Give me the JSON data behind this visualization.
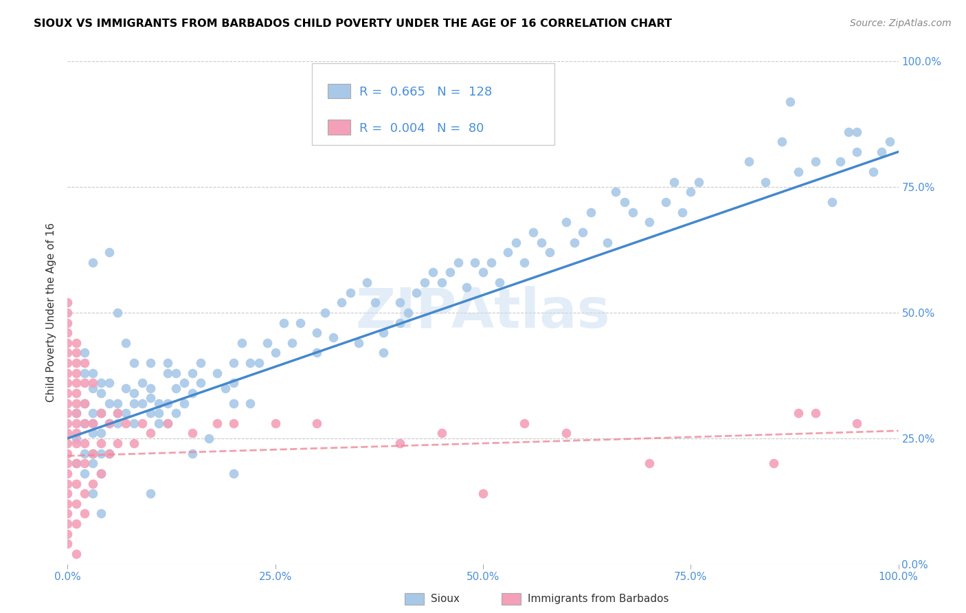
{
  "title": "SIOUX VS IMMIGRANTS FROM BARBADOS CHILD POVERTY UNDER THE AGE OF 16 CORRELATION CHART",
  "source": "Source: ZipAtlas.com",
  "ylabel": "Child Poverty Under the Age of 16",
  "xmin": 0.0,
  "xmax": 1.0,
  "ymin": 0.0,
  "ymax": 1.0,
  "sioux_R": 0.665,
  "sioux_N": 128,
  "barbados_R": 0.004,
  "barbados_N": 80,
  "sioux_color": "#a8c8e8",
  "barbados_color": "#f4a0b8",
  "sioux_line_color": "#4488cc",
  "barbados_line_color": "#ee8899",
  "watermark": "ZIPAtlas",
  "tick_label_color": "#4a90d9",
  "grid_color": "#bbbbbb",
  "xtick_labels": [
    "0.0%",
    "25.0%",
    "50.0%",
    "75.0%",
    "100.0%"
  ],
  "ytick_labels_right": [
    "0.0%",
    "25.0%",
    "50.0%",
    "75.0%",
    "100.0%"
  ],
  "sioux_points": [
    [
      0.01,
      0.2
    ],
    [
      0.01,
      0.25
    ],
    [
      0.01,
      0.3
    ],
    [
      0.02,
      0.18
    ],
    [
      0.02,
      0.22
    ],
    [
      0.02,
      0.28
    ],
    [
      0.02,
      0.32
    ],
    [
      0.02,
      0.38
    ],
    [
      0.02,
      0.42
    ],
    [
      0.03,
      0.14
    ],
    [
      0.03,
      0.2
    ],
    [
      0.03,
      0.22
    ],
    [
      0.03,
      0.26
    ],
    [
      0.03,
      0.28
    ],
    [
      0.03,
      0.3
    ],
    [
      0.03,
      0.35
    ],
    [
      0.03,
      0.38
    ],
    [
      0.03,
      0.6
    ],
    [
      0.04,
      0.1
    ],
    [
      0.04,
      0.18
    ],
    [
      0.04,
      0.22
    ],
    [
      0.04,
      0.26
    ],
    [
      0.04,
      0.3
    ],
    [
      0.04,
      0.34
    ],
    [
      0.04,
      0.36
    ],
    [
      0.05,
      0.22
    ],
    [
      0.05,
      0.28
    ],
    [
      0.05,
      0.32
    ],
    [
      0.05,
      0.36
    ],
    [
      0.05,
      0.62
    ],
    [
      0.06,
      0.28
    ],
    [
      0.06,
      0.3
    ],
    [
      0.06,
      0.32
    ],
    [
      0.06,
      0.5
    ],
    [
      0.07,
      0.3
    ],
    [
      0.07,
      0.35
    ],
    [
      0.07,
      0.44
    ],
    [
      0.08,
      0.28
    ],
    [
      0.08,
      0.32
    ],
    [
      0.08,
      0.34
    ],
    [
      0.08,
      0.4
    ],
    [
      0.09,
      0.32
    ],
    [
      0.09,
      0.36
    ],
    [
      0.1,
      0.14
    ],
    [
      0.1,
      0.3
    ],
    [
      0.1,
      0.33
    ],
    [
      0.1,
      0.35
    ],
    [
      0.1,
      0.4
    ],
    [
      0.11,
      0.28
    ],
    [
      0.11,
      0.3
    ],
    [
      0.11,
      0.32
    ],
    [
      0.12,
      0.28
    ],
    [
      0.12,
      0.32
    ],
    [
      0.12,
      0.38
    ],
    [
      0.12,
      0.4
    ],
    [
      0.13,
      0.3
    ],
    [
      0.13,
      0.35
    ],
    [
      0.13,
      0.38
    ],
    [
      0.14,
      0.32
    ],
    [
      0.14,
      0.36
    ],
    [
      0.15,
      0.22
    ],
    [
      0.15,
      0.34
    ],
    [
      0.15,
      0.38
    ],
    [
      0.16,
      0.36
    ],
    [
      0.16,
      0.4
    ],
    [
      0.17,
      0.25
    ],
    [
      0.18,
      0.38
    ],
    [
      0.19,
      0.35
    ],
    [
      0.2,
      0.18
    ],
    [
      0.2,
      0.32
    ],
    [
      0.2,
      0.36
    ],
    [
      0.2,
      0.4
    ],
    [
      0.21,
      0.44
    ],
    [
      0.22,
      0.32
    ],
    [
      0.22,
      0.4
    ],
    [
      0.23,
      0.4
    ],
    [
      0.24,
      0.44
    ],
    [
      0.25,
      0.42
    ],
    [
      0.26,
      0.48
    ],
    [
      0.27,
      0.44
    ],
    [
      0.28,
      0.48
    ],
    [
      0.3,
      0.42
    ],
    [
      0.3,
      0.46
    ],
    [
      0.31,
      0.5
    ],
    [
      0.32,
      0.45
    ],
    [
      0.33,
      0.52
    ],
    [
      0.34,
      0.54
    ],
    [
      0.35,
      0.44
    ],
    [
      0.36,
      0.56
    ],
    [
      0.37,
      0.52
    ],
    [
      0.38,
      0.42
    ],
    [
      0.38,
      0.46
    ],
    [
      0.4,
      0.48
    ],
    [
      0.4,
      0.52
    ],
    [
      0.41,
      0.5
    ],
    [
      0.42,
      0.54
    ],
    [
      0.43,
      0.56
    ],
    [
      0.44,
      0.58
    ],
    [
      0.45,
      0.56
    ],
    [
      0.46,
      0.58
    ],
    [
      0.47,
      0.6
    ],
    [
      0.48,
      0.55
    ],
    [
      0.49,
      0.6
    ],
    [
      0.5,
      0.58
    ],
    [
      0.51,
      0.6
    ],
    [
      0.52,
      0.56
    ],
    [
      0.53,
      0.62
    ],
    [
      0.54,
      0.64
    ],
    [
      0.55,
      0.6
    ],
    [
      0.56,
      0.66
    ],
    [
      0.57,
      0.64
    ],
    [
      0.58,
      0.62
    ],
    [
      0.6,
      0.68
    ],
    [
      0.61,
      0.64
    ],
    [
      0.62,
      0.66
    ],
    [
      0.63,
      0.7
    ],
    [
      0.65,
      0.64
    ],
    [
      0.66,
      0.74
    ],
    [
      0.67,
      0.72
    ],
    [
      0.68,
      0.7
    ],
    [
      0.7,
      0.68
    ],
    [
      0.72,
      0.72
    ],
    [
      0.73,
      0.76
    ],
    [
      0.74,
      0.7
    ],
    [
      0.75,
      0.74
    ],
    [
      0.76,
      0.76
    ],
    [
      0.82,
      0.8
    ],
    [
      0.84,
      0.76
    ],
    [
      0.86,
      0.84
    ],
    [
      0.87,
      0.92
    ],
    [
      0.88,
      0.78
    ],
    [
      0.9,
      0.8
    ],
    [
      0.92,
      0.72
    ],
    [
      0.93,
      0.8
    ],
    [
      0.94,
      0.86
    ],
    [
      0.95,
      0.82
    ],
    [
      0.95,
      0.86
    ],
    [
      0.97,
      0.78
    ],
    [
      0.98,
      0.82
    ],
    [
      0.99,
      0.84
    ]
  ],
  "barbados_points": [
    [
      0.0,
      0.04
    ],
    [
      0.0,
      0.06
    ],
    [
      0.0,
      0.08
    ],
    [
      0.0,
      0.1
    ],
    [
      0.0,
      0.12
    ],
    [
      0.0,
      0.14
    ],
    [
      0.0,
      0.16
    ],
    [
      0.0,
      0.18
    ],
    [
      0.0,
      0.2
    ],
    [
      0.0,
      0.22
    ],
    [
      0.0,
      0.24
    ],
    [
      0.0,
      0.26
    ],
    [
      0.0,
      0.28
    ],
    [
      0.0,
      0.3
    ],
    [
      0.0,
      0.32
    ],
    [
      0.0,
      0.34
    ],
    [
      0.0,
      0.36
    ],
    [
      0.0,
      0.38
    ],
    [
      0.0,
      0.4
    ],
    [
      0.0,
      0.42
    ],
    [
      0.0,
      0.44
    ],
    [
      0.0,
      0.46
    ],
    [
      0.0,
      0.48
    ],
    [
      0.0,
      0.5
    ],
    [
      0.0,
      0.52
    ],
    [
      0.01,
      0.08
    ],
    [
      0.01,
      0.12
    ],
    [
      0.01,
      0.16
    ],
    [
      0.01,
      0.2
    ],
    [
      0.01,
      0.24
    ],
    [
      0.01,
      0.26
    ],
    [
      0.01,
      0.28
    ],
    [
      0.01,
      0.3
    ],
    [
      0.01,
      0.32
    ],
    [
      0.01,
      0.34
    ],
    [
      0.01,
      0.36
    ],
    [
      0.01,
      0.38
    ],
    [
      0.01,
      0.4
    ],
    [
      0.01,
      0.42
    ],
    [
      0.01,
      0.44
    ],
    [
      0.01,
      0.02
    ],
    [
      0.02,
      0.1
    ],
    [
      0.02,
      0.14
    ],
    [
      0.02,
      0.2
    ],
    [
      0.02,
      0.24
    ],
    [
      0.02,
      0.28
    ],
    [
      0.02,
      0.32
    ],
    [
      0.02,
      0.36
    ],
    [
      0.02,
      0.4
    ],
    [
      0.03,
      0.16
    ],
    [
      0.03,
      0.22
    ],
    [
      0.03,
      0.28
    ],
    [
      0.03,
      0.36
    ],
    [
      0.04,
      0.18
    ],
    [
      0.04,
      0.24
    ],
    [
      0.04,
      0.3
    ],
    [
      0.05,
      0.22
    ],
    [
      0.05,
      0.28
    ],
    [
      0.06,
      0.24
    ],
    [
      0.06,
      0.3
    ],
    [
      0.07,
      0.28
    ],
    [
      0.08,
      0.24
    ],
    [
      0.09,
      0.28
    ],
    [
      0.1,
      0.26
    ],
    [
      0.12,
      0.28
    ],
    [
      0.15,
      0.26
    ],
    [
      0.18,
      0.28
    ],
    [
      0.2,
      0.28
    ],
    [
      0.25,
      0.28
    ],
    [
      0.3,
      0.28
    ],
    [
      0.4,
      0.24
    ],
    [
      0.45,
      0.26
    ],
    [
      0.5,
      0.14
    ],
    [
      0.55,
      0.28
    ],
    [
      0.6,
      0.26
    ],
    [
      0.7,
      0.2
    ],
    [
      0.85,
      0.2
    ],
    [
      0.88,
      0.3
    ],
    [
      0.9,
      0.3
    ],
    [
      0.95,
      0.28
    ]
  ],
  "sioux_trend": [
    0.0,
    0.25,
    1.0,
    0.82
  ],
  "barbados_trend": [
    0.0,
    0.215,
    1.0,
    0.265
  ]
}
